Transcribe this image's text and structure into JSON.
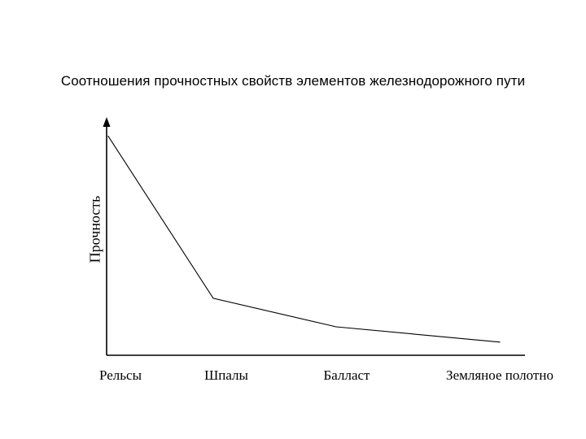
{
  "chart_data": {
    "type": "line",
    "title": "Соотношения прочностных свойств элементов железнодорожного пути",
    "ylabel": "Прочность",
    "xlabel": "",
    "categories": [
      "Рельсы",
      "Шпалы",
      "Балласт",
      "Земляное полотно"
    ],
    "series": [
      {
        "values": [
          1.0,
          0.26,
          0.13,
          0.06
        ]
      }
    ],
    "ylim": [
      0,
      1.08
    ],
    "grid": false,
    "legend": "none",
    "colors": {
      "line": "#000000",
      "axis": "#000000"
    }
  }
}
